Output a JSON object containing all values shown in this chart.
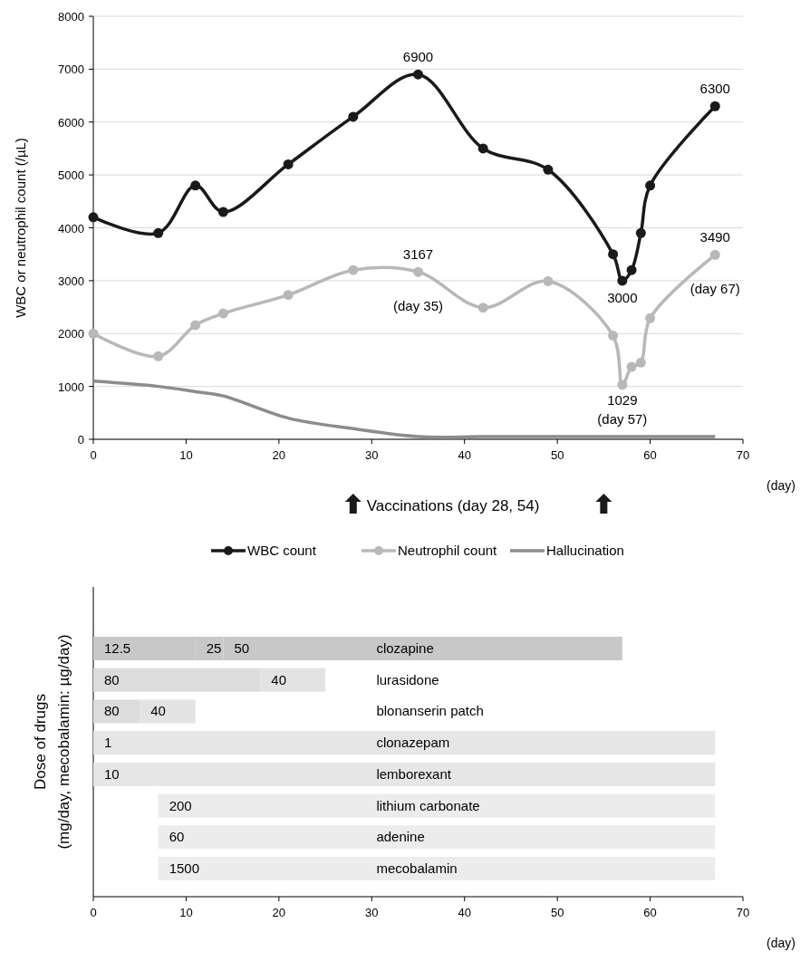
{
  "chart_data": [
    {
      "type": "line",
      "ylabel": "WBC or neutrophil count (/µL)",
      "xlabel": "(day)",
      "xlim": [
        0,
        70
      ],
      "xticks": [
        0,
        10,
        20,
        30,
        40,
        50,
        60,
        70
      ],
      "ylim": [
        0,
        8000
      ],
      "yticks": [
        0,
        1000,
        2000,
        3000,
        4000,
        5000,
        6000,
        7000,
        8000
      ],
      "grid": "y",
      "legend": "bottom",
      "marker": "circle",
      "line_style": "solid",
      "annotations": [
        {
          "text": "(day 35)",
          "x": 35,
          "y": 3167
        },
        {
          "text": "(day 57)",
          "x": 57,
          "y": 1029
        },
        {
          "text": "(day 67)",
          "x": 67,
          "y": 3490
        },
        "Vaccinations (day 28, 54)"
      ],
      "series": [
        {
          "name": "WBC count",
          "color": "#1a1a1a",
          "x": [
            0,
            7,
            11,
            14,
            21,
            28,
            35,
            42,
            49,
            56,
            57,
            58,
            59,
            60,
            67
          ],
          "values": [
            4200,
            3900,
            4800,
            4300,
            5200,
            6100,
            6900,
            5500,
            5100,
            3500,
            3000,
            3200,
            3900,
            4800,
            6300
          ],
          "value_labels": [
            null,
            null,
            null,
            null,
            null,
            null,
            "6900",
            null,
            null,
            null,
            "3000",
            null,
            null,
            null,
            "6300"
          ]
        },
        {
          "name": "Neutrophil count",
          "color": "#b8b8b8",
          "x": [
            0,
            7,
            11,
            14,
            21,
            28,
            35,
            42,
            49,
            56,
            57,
            58,
            59,
            60,
            67
          ],
          "values": [
            2000,
            1570,
            2160,
            2380,
            2730,
            3200,
            3167,
            2490,
            2990,
            1960,
            1029,
            1370,
            1450,
            2290,
            3490
          ],
          "value_labels": [
            null,
            null,
            null,
            null,
            null,
            null,
            "3167",
            null,
            null,
            null,
            "1029",
            null,
            null,
            null,
            "3490"
          ]
        },
        {
          "name": "Hallucination",
          "color": "#8c8c8c",
          "marker": "none",
          "x": [
            0,
            7,
            11,
            14,
            21,
            28,
            35,
            42,
            49,
            56,
            67
          ],
          "values": [
            1100,
            1000,
            900,
            820,
            400,
            200,
            50,
            50,
            50,
            50,
            50
          ]
        }
      ]
    },
    {
      "type": "bar",
      "orientation": "horizontal",
      "ylabel": "Dose of drugs\n(mg/day, mecobalamin: µg/day)",
      "xlabel": "(day)",
      "xlim": [
        0,
        70
      ],
      "xticks": [
        0,
        10,
        20,
        30,
        40,
        50,
        60,
        70
      ],
      "tick_labels": "x",
      "categories": [
        "clozapine",
        "lurasidone",
        "blonanserin patch",
        "clonazepam",
        "lemborexant",
        "lithium carbonate",
        "adenine",
        "mecobalamin"
      ],
      "annotations": [
        {
          "text": "12.5",
          "x": 0,
          "y": "clozapine"
        },
        {
          "text": "25",
          "x": 11,
          "y": "clozapine"
        },
        {
          "text": "50",
          "x": 14,
          "y": "clozapine"
        },
        {
          "text": "80",
          "x": 0,
          "y": "lurasidone"
        },
        {
          "text": "40",
          "x": 18,
          "y": "lurasidone"
        },
        {
          "text": "80",
          "x": 0,
          "y": "blonanserin patch"
        },
        {
          "text": "40",
          "x": 5,
          "y": "blonanserin patch"
        },
        {
          "text": "1",
          "x": 0,
          "y": "clonazepam"
        },
        {
          "text": "10",
          "x": 0,
          "y": "lemborexant"
        },
        {
          "text": "200",
          "x": 7,
          "y": "lithium carbonate"
        },
        {
          "text": "60",
          "x": 7,
          "y": "adenine"
        },
        {
          "text": "1500",
          "x": 7,
          "y": "mecobalamin"
        }
      ],
      "series": [
        {
          "colors": [
            "#c8c8c8",
            "#dcdcdc",
            "#dcdcdc",
            "#e6e6e6",
            "#e6e6e6",
            "#ececec",
            "#ececec",
            "#ececec"
          ],
          "base": [
            0,
            0,
            0,
            0,
            0,
            7,
            7,
            7
          ],
          "values": [
            11,
            18,
            5,
            67,
            67,
            60,
            60,
            60
          ]
        },
        {
          "colors": [
            "#c8c8c8",
            "#e3e3e3",
            "#e3e3e3",
            null,
            null,
            null,
            null,
            null
          ],
          "base": [
            11,
            18,
            5,
            null,
            null,
            null,
            null,
            null
          ],
          "values": [
            3,
            7,
            6,
            null,
            null,
            null,
            null,
            null
          ]
        },
        {
          "colors": [
            "#c8c8c8",
            null,
            null,
            null,
            null,
            null,
            null,
            null
          ],
          "base": [
            14,
            null,
            null,
            null,
            null,
            null,
            null,
            null
          ],
          "values": [
            43,
            null,
            null,
            null,
            null,
            null,
            null,
            null
          ]
        }
      ]
    }
  ]
}
